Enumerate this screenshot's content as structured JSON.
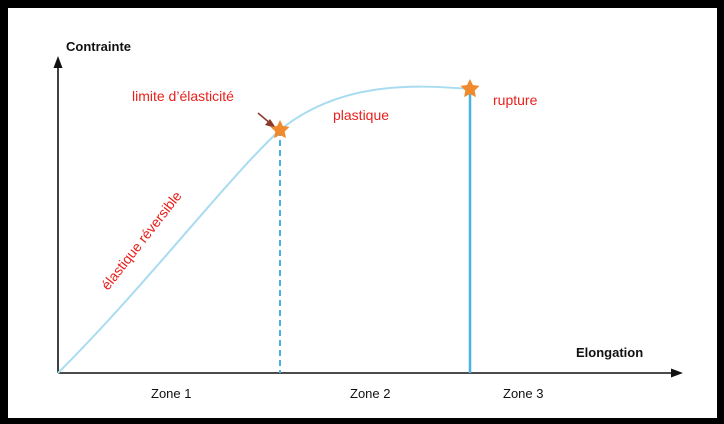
{
  "axes": {
    "y_label": "Contrainte",
    "x_label": "Elongation"
  },
  "zones": [
    {
      "label": "Zone 1"
    },
    {
      "label": "Zone 2"
    },
    {
      "label": "Zone 3"
    }
  ],
  "annotations": {
    "elastic_limit": "limite d’élasticité",
    "plastic": "plastique",
    "rupture": "rupture",
    "elastic_reversible": "élastique réversible"
  },
  "colors": {
    "curve": "#a8dcf0",
    "vertical_lines": "#49b4e4",
    "annotation_text": "#e8211c",
    "star": "#f08a2c",
    "axes": "#111111",
    "frame": "#000000",
    "arrow_pointer": "#8b3a2a"
  },
  "icons": {
    "marker": "star-icon"
  }
}
